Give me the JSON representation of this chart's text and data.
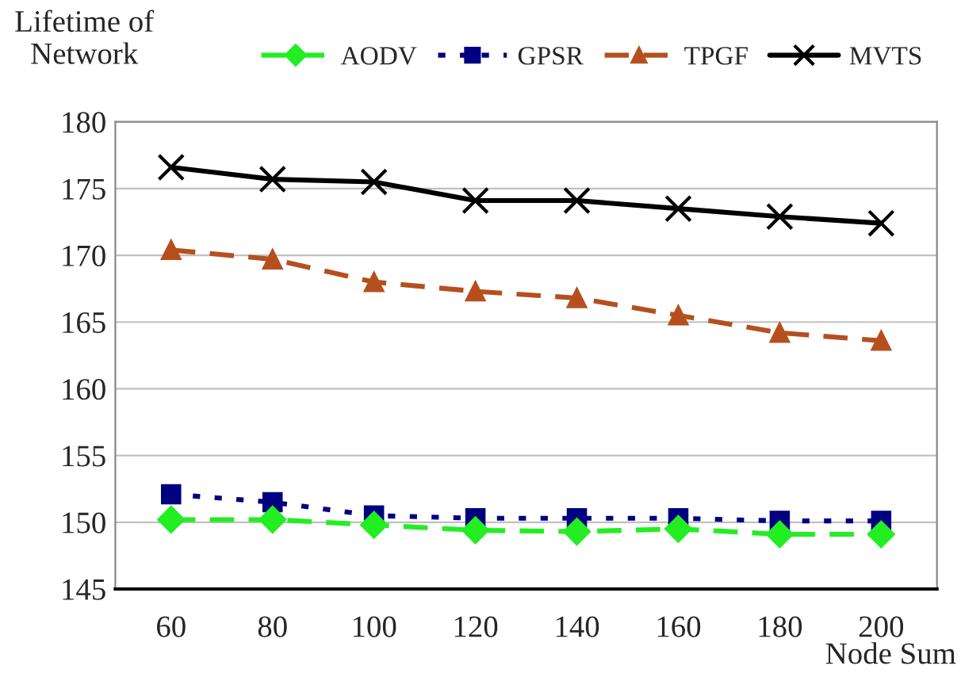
{
  "chart_data": {
    "type": "line",
    "ylabel": "Lifetime of\nNetwork",
    "xlabel": "Node Sum",
    "categories": [
      "60",
      "80",
      "100",
      "120",
      "140",
      "160",
      "180",
      "200"
    ],
    "series": [
      {
        "name": "AODV",
        "color": "#22ee22",
        "marker": "diamond",
        "line_style": "dashed",
        "values": [
          150.2,
          150.2,
          149.8,
          149.4,
          149.3,
          149.5,
          149.1,
          149.1
        ]
      },
      {
        "name": "GPSR",
        "color": "#000080",
        "marker": "square",
        "line_style": "dotted",
        "values": [
          152.1,
          151.5,
          150.5,
          150.3,
          150.3,
          150.3,
          150.1,
          150.1
        ]
      },
      {
        "name": "TPGF",
        "color": "#b5501e",
        "marker": "triangle",
        "line_style": "dashed",
        "values": [
          170.4,
          169.7,
          168.0,
          167.3,
          166.8,
          165.5,
          164.2,
          163.6
        ]
      },
      {
        "name": "MVTS",
        "color": "#000000",
        "marker": "cross",
        "line_style": "solid",
        "values": [
          176.6,
          175.7,
          175.5,
          174.1,
          174.1,
          173.5,
          172.9,
          172.4
        ]
      }
    ],
    "ylim": [
      145,
      180
    ],
    "yticks": [
      145,
      150,
      155,
      160,
      165,
      170,
      175,
      180
    ],
    "grid": "y",
    "legend": "top"
  }
}
